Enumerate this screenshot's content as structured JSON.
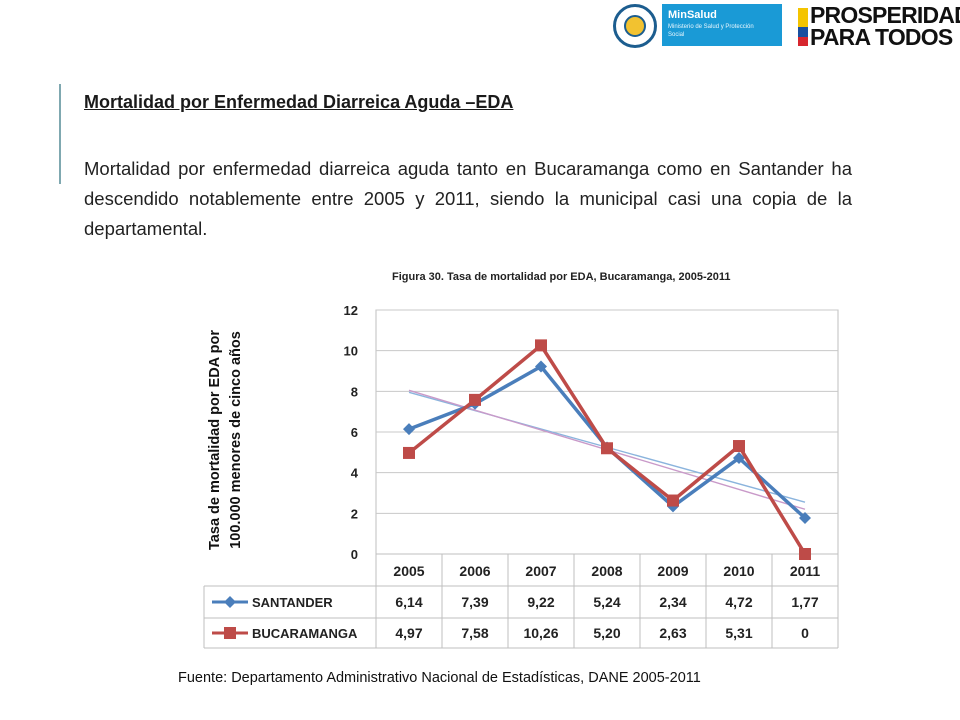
{
  "logos": {
    "ministry_name": "MinSalud",
    "ministry_sub": "Ministerio de Salud y Protección Social",
    "slogan_line1": "PROSPERIDAD",
    "slogan_line2": "PARA TODOS"
  },
  "slide": {
    "title": "Mortalidad por Enfermedad Diarreica Aguda –EDA",
    "paragraph": "Mortalidad por enfermedad diarreica aguda tanto en Bucaramanga como en Santander ha descendido notablemente entre 2005 y 2011, siendo la municipal casi una copia de la departamental."
  },
  "chart_data": {
    "type": "line",
    "title": "Figura 30. Tasa de mortalidad por EDA, Bucaramanga, 2005-2011",
    "ylabel_line1": "Tasa de mortalidad por EDA por",
    "ylabel_line2": "100.000  menores de cinco años",
    "ylim": [
      0,
      12
    ],
    "yticks": [
      0,
      2,
      4,
      6,
      8,
      10,
      12
    ],
    "grid": true,
    "categories": [
      "2005",
      "2006",
      "2007",
      "2008",
      "2009",
      "2010",
      "2011"
    ],
    "series": [
      {
        "name": "SANTANDER",
        "color": "#4a7ebb",
        "marker": "diamond",
        "values": [
          6.14,
          7.39,
          9.22,
          5.24,
          2.34,
          4.72,
          1.77
        ],
        "labels": [
          "6,14",
          "7,39",
          "9,22",
          "5,24",
          "2,34",
          "4,72",
          "1,77"
        ]
      },
      {
        "name": "BUCARAMANGA",
        "color": "#be4b48",
        "marker": "square",
        "values": [
          4.97,
          7.58,
          10.26,
          5.2,
          2.63,
          5.31,
          0
        ],
        "labels": [
          "4,97",
          "7,58",
          "10,26",
          "5,20",
          "2,63",
          "5,31",
          "0"
        ]
      }
    ],
    "trendlines": [
      {
        "series": "SANTANDER",
        "color": "#8bb4dd",
        "start": 7.95,
        "end": 2.55
      },
      {
        "series": "BUCARAMANGA",
        "color": "#c99ac9",
        "start": 8.05,
        "end": 2.2
      }
    ],
    "source": "Fuente: Departamento Administrativo Nacional de Estadísticas, DANE 2005-2011"
  }
}
